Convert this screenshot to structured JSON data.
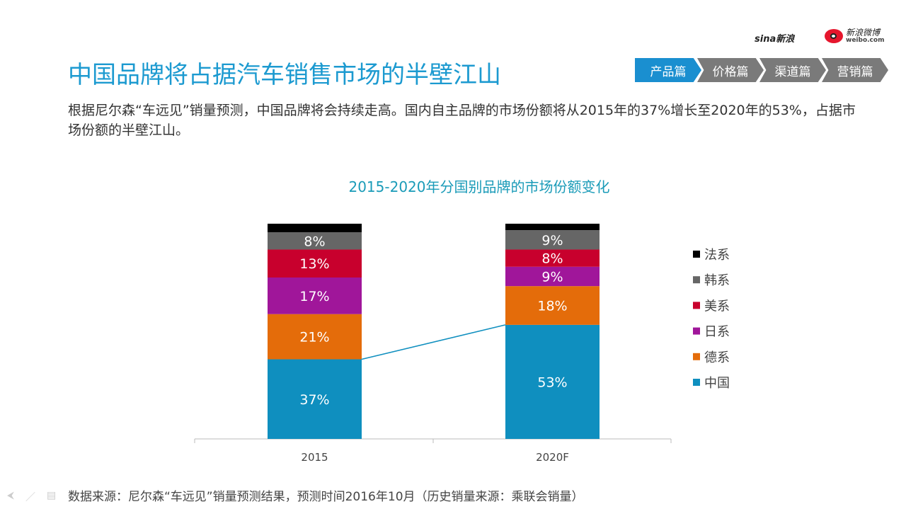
{
  "header": {
    "title": "中国品牌将占据汽车销售市场的半壁江山",
    "intro": "根据尼尔森“车远见”销量预测，中国品牌将会持续走高。国内自主品牌的市场份额将从2015年的37%增长至2020年的53%，占据市场份额的半壁江山。",
    "logos": {
      "sina": "sina新浪",
      "weibo_cn": "新浪微博",
      "weibo_url": "weibo.com"
    }
  },
  "nav": {
    "tabs": [
      {
        "label": "产品篇",
        "active": true
      },
      {
        "label": "价格篇",
        "active": false
      },
      {
        "label": "渠道篇",
        "active": false
      },
      {
        "label": "营销篇",
        "active": false
      }
    ],
    "active_color": "#1a8fd0"
  },
  "chart_data": {
    "type": "stacked-bar",
    "title": "2015-2020年分国别品牌的市场份额变化",
    "categories": [
      "2015",
      "2020F"
    ],
    "unit": "%",
    "ylim": [
      0,
      100
    ],
    "legend_position": "right",
    "series": [
      {
        "name": "中国",
        "values": [
          37,
          53
        ],
        "color": "#0f8fbf",
        "labels": [
          "37%",
          "53%"
        ]
      },
      {
        "name": "德系",
        "values": [
          21,
          18
        ],
        "color": "#e46c0a",
        "labels": [
          "21%",
          "18%"
        ]
      },
      {
        "name": "日系",
        "values": [
          17,
          9
        ],
        "color": "#a0169a",
        "labels": [
          "17%",
          "9%"
        ]
      },
      {
        "name": "美系",
        "values": [
          13,
          8
        ],
        "color": "#c8002d",
        "labels": [
          "13%",
          "8%"
        ]
      },
      {
        "name": "韩系",
        "values": [
          8,
          9
        ],
        "color": "#666666",
        "labels": [
          "8%",
          "9%"
        ]
      },
      {
        "name": "法系",
        "values": [
          4,
          3
        ],
        "color": "#000000",
        "labels": [
          "",
          ""
        ]
      }
    ],
    "connector_series": "中国"
  },
  "footer": {
    "source": "数据来源：尼尔森“车远见”销量预测结果，预测时间2016年10月（历史销量来源：乘联会销量）"
  }
}
